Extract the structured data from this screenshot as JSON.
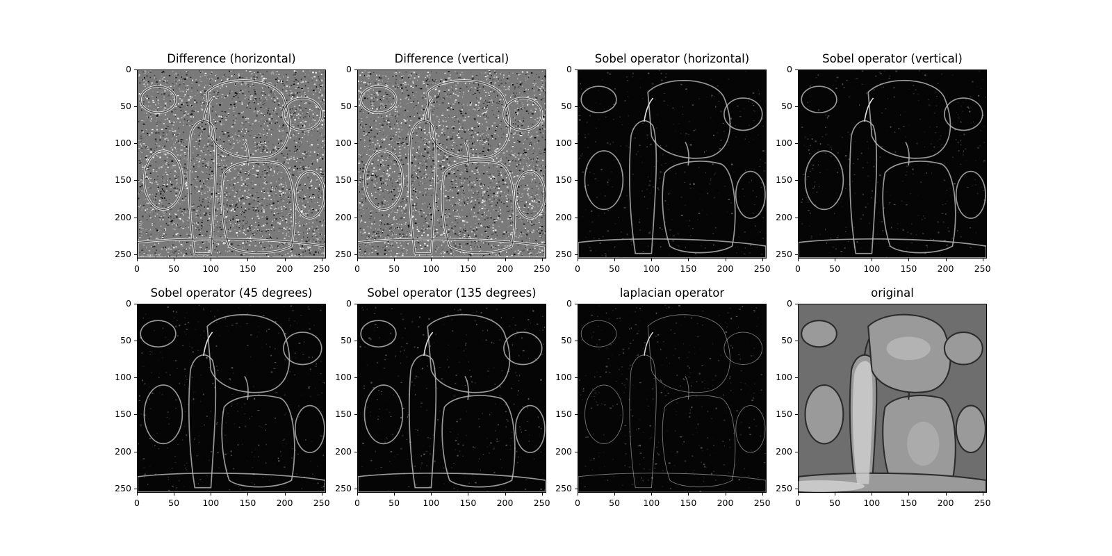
{
  "figure": {
    "background": "#ffffff",
    "axis_color": "#000000",
    "colormap": "gray",
    "panels": [
      {
        "title": "Difference (horizontal)",
        "image": "difference-horizontal-edge-map"
      },
      {
        "title": "Difference (vertical)",
        "image": "difference-vertical-edge-map"
      },
      {
        "title": "Sobel operator (horizontal)",
        "image": "sobel-horizontal-edge-map"
      },
      {
        "title": "Sobel operator (vertical)",
        "image": "sobel-vertical-edge-map"
      },
      {
        "title": "Sobel operator (45 degrees)",
        "image": "sobel-45-degree-edge-map"
      },
      {
        "title": "Sobel operator (135 degrees)",
        "image": "sobel-135-degree-edge-map"
      },
      {
        "title": "laplacian operator",
        "image": "laplacian-edge-map"
      },
      {
        "title": "original",
        "image": "grayscale-peppers-photo"
      }
    ],
    "x_ticks": [
      "0",
      "50",
      "100",
      "150",
      "200",
      "250"
    ],
    "y_ticks": [
      "0",
      "50",
      "100",
      "150",
      "200",
      "250"
    ]
  }
}
